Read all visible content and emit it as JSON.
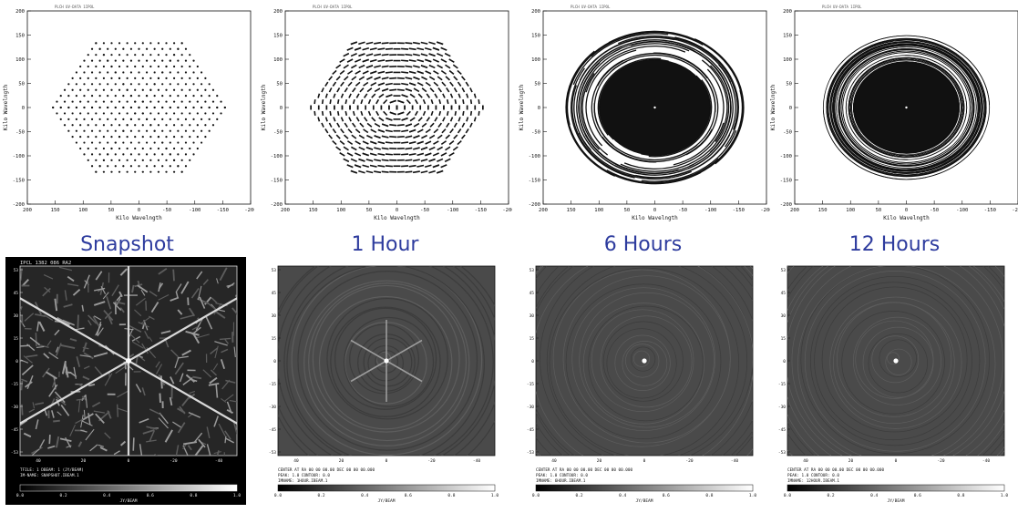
{
  "panels": [
    {
      "uv_header": "PLCH      UV-DATA  1IPOL  ",
      "caption": "Snapshot",
      "beam_title": "IPCL  1382 086 RA2",
      "beam_footer": [
        "TFILE: 1  DBEAM: 1  (JY/BEAM)",
        "IM-NAME: SNAPSHOT.IBEAM.1"
      ],
      "beam_unit": "JY/BEAM",
      "pattern": "snapshot"
    },
    {
      "uv_header": "PLCH      UV-DATA  1IPOL  ",
      "caption": "1 Hour",
      "beam_title": "",
      "beam_footer": [
        "CENTER AT  RA 00 00 00.00  DEC 00 00 00.000",
        "PEAK: 1.0  CONTOUR: 0.0",
        "IMNAME: 1HOUR.IBEAM.1"
      ],
      "beam_unit": "JY/BEAM",
      "pattern": "1h"
    },
    {
      "uv_header": "PLCH      UV-DATA  1IPOL  ",
      "caption": "6 Hours",
      "beam_title": "",
      "beam_footer": [
        "CENTER AT  RA 00 00 00.00  DEC 00 00 00.000",
        "PEAK: 1.0  CONTOUR: 0.0",
        "IMNAME: 6HOUR.IBEAM.1"
      ],
      "beam_unit": "JY/BEAM",
      "pattern": "6h"
    },
    {
      "uv_header": "PLCH      UV-DATA  1IPOL  ",
      "caption": "12 Hours",
      "beam_title": "",
      "beam_footer": [
        "CENTER AT  RA 00 00 00.00  DEC 00 00 00.000",
        "PEAK: 1.0  CONTOUR: 0.0",
        "IMNAME: 12HOUR.IBEAM.1"
      ],
      "beam_unit": "JY/BEAM",
      "pattern": "12h"
    }
  ],
  "uv_axes": {
    "xlabel": "Kilo Wavelngth",
    "ylabel": "Kilo Wavelngth",
    "x_ticks": [
      "200",
      "150",
      "100",
      "50",
      "0",
      "-50",
      "-100",
      "-150",
      "-200"
    ],
    "y_ticks": [
      "200",
      "150",
      "100",
      "50",
      "0",
      "-50",
      "-100",
      "-150",
      "-200"
    ]
  },
  "beam_axes": {
    "side_ticks": [
      "53",
      "45",
      "30",
      "15",
      "0",
      "-15",
      "-30",
      "-45",
      "-53"
    ],
    "bottom_ticks": [
      "40",
      "20",
      "0",
      "-20",
      "-40"
    ],
    "colorbar_ticks": [
      "0.0",
      "0.2",
      "0.4",
      "0.6",
      "0.8",
      "1.0"
    ]
  },
  "colors": {
    "caption": "#2e3c9e",
    "plot_ink": "#111111"
  }
}
